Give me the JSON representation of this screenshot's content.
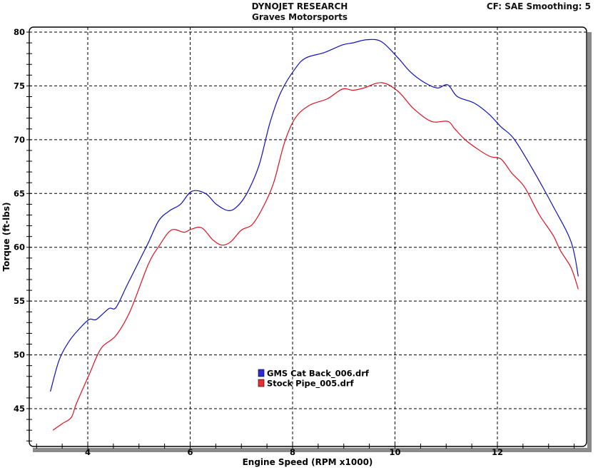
{
  "header": {
    "title": "DYNOJET RESEARCH",
    "subtitle": "Graves Motorsports",
    "settings": "CF: SAE  Smoothing: 5"
  },
  "colors": {
    "series_blue": "#1010c0",
    "series_red": "#e01020",
    "grid": "#000000",
    "frame_shadow": "#808080"
  },
  "chart_data": {
    "type": "line",
    "title": "DYNOJET RESEARCH — Graves Motorsports",
    "xlabel": "Engine Speed (RPM x1000)",
    "ylabel": "Torque (ft-lbs)",
    "xlim": [
      2.85,
      13.75
    ],
    "ylim": [
      41.5,
      80.5
    ],
    "xticks": [
      4,
      6,
      8,
      10,
      12
    ],
    "yticks": [
      45,
      50,
      55,
      60,
      65,
      70,
      75,
      80
    ],
    "grid": true,
    "legend_position": "inside-lower-center",
    "annotations": [
      "CF: SAE  Smoothing: 5"
    ],
    "series": [
      {
        "name": "GMS Cat Back_006.drf",
        "color": "#1010c0",
        "x": [
          3.27,
          3.44,
          3.64,
          3.85,
          4.03,
          4.17,
          4.41,
          4.55,
          4.76,
          4.97,
          5.18,
          5.39,
          5.6,
          5.81,
          6.03,
          6.3,
          6.51,
          6.76,
          6.96,
          7.14,
          7.35,
          7.56,
          7.77,
          8.05,
          8.26,
          8.62,
          8.97,
          9.18,
          9.46,
          9.74,
          10.06,
          10.3,
          10.58,
          10.83,
          11.03,
          11.22,
          11.55,
          11.83,
          12.07,
          12.32,
          12.67,
          13.09,
          13.44,
          13.58
        ],
        "values": [
          46.6,
          49.5,
          51.3,
          52.5,
          53.3,
          53.3,
          54.3,
          54.4,
          56.4,
          58.4,
          60.4,
          62.5,
          63.4,
          64.0,
          65.2,
          65.0,
          64.0,
          63.4,
          64.0,
          65.3,
          67.7,
          71.6,
          74.4,
          76.6,
          77.6,
          78.1,
          78.8,
          79.0,
          79.3,
          79.1,
          77.6,
          76.3,
          75.3,
          74.8,
          75.1,
          74.0,
          73.4,
          72.4,
          71.2,
          70.1,
          67.4,
          63.8,
          60.5,
          57.3
        ]
      },
      {
        "name": "Stock Pipe_005.drf",
        "color": "#e01020",
        "x": [
          3.32,
          3.5,
          3.68,
          3.78,
          4.03,
          4.26,
          4.55,
          4.83,
          5.18,
          5.39,
          5.63,
          5.88,
          6.03,
          6.23,
          6.44,
          6.62,
          6.79,
          7.0,
          7.21,
          7.42,
          7.63,
          7.84,
          8.05,
          8.33,
          8.68,
          8.97,
          9.18,
          9.39,
          9.74,
          10.06,
          10.36,
          10.71,
          11.03,
          11.17,
          11.42,
          11.83,
          12.07,
          12.28,
          12.53,
          12.81,
          13.09,
          13.23,
          13.44,
          13.58
        ],
        "values": [
          43.0,
          43.6,
          44.2,
          45.5,
          48.2,
          50.6,
          51.8,
          54.1,
          58.4,
          60.1,
          61.6,
          61.4,
          61.7,
          61.8,
          60.7,
          60.2,
          60.5,
          61.6,
          62.1,
          63.7,
          66.0,
          69.7,
          72.0,
          73.2,
          73.8,
          74.7,
          74.6,
          74.8,
          75.3,
          74.5,
          72.9,
          71.7,
          71.7,
          71.0,
          69.8,
          68.5,
          68.2,
          66.9,
          65.6,
          63.1,
          61.1,
          59.7,
          58.1,
          56.1
        ]
      }
    ]
  },
  "legend": {
    "items": [
      {
        "label": "GMS Cat Back_006.drf",
        "color": "#1010c0"
      },
      {
        "label": "Stock Pipe_005.drf",
        "color": "#e01020"
      }
    ]
  }
}
